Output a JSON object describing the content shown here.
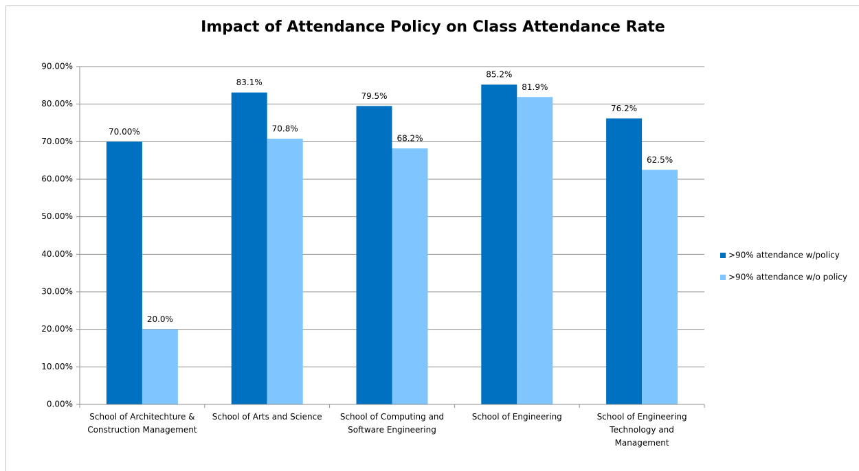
{
  "chart_data": {
    "type": "bar",
    "title": "Impact of Attendance Policy on Class Attendance Rate",
    "categories": [
      "School of Architechture & Construction Management",
      "School of Arts and Science",
      "School of Computing and Software Engineering",
      "School of Engineering",
      "School of Engineering Technology and Management"
    ],
    "series": [
      {
        "name": ">90% attendance w/policy",
        "color": "#0070c0",
        "values": [
          70,
          83.1,
          79.5,
          85.2,
          76.2
        ],
        "value_labels": [
          "70.00%",
          "83.1%",
          "79.5%",
          "85.2%",
          "76.2%"
        ]
      },
      {
        "name": ">90% attendance w/o policy",
        "color": "#7fc6ff",
        "values": [
          20,
          70.8,
          68.2,
          81.9,
          62.5
        ],
        "value_labels": [
          "20.0%",
          "70.8%",
          "68.2%",
          "81.9%",
          "62.5%"
        ]
      }
    ],
    "ylim": [
      0,
      90
    ],
    "yticks": [
      {
        "value": 0,
        "label": "0.00%"
      },
      {
        "value": 10,
        "label": "10.00%"
      },
      {
        "value": 20,
        "label": "20.00%"
      },
      {
        "value": 30,
        "label": "30.00%"
      },
      {
        "value": 40,
        "label": "40.00%"
      },
      {
        "value": 50,
        "label": "50.00%"
      },
      {
        "value": 60,
        "label": "60.00%"
      },
      {
        "value": 70,
        "label": "70.00%"
      },
      {
        "value": 80,
        "label": "80.00%"
      },
      {
        "value": 90,
        "label": "90.00%"
      }
    ],
    "grid": true,
    "legend": "right"
  }
}
